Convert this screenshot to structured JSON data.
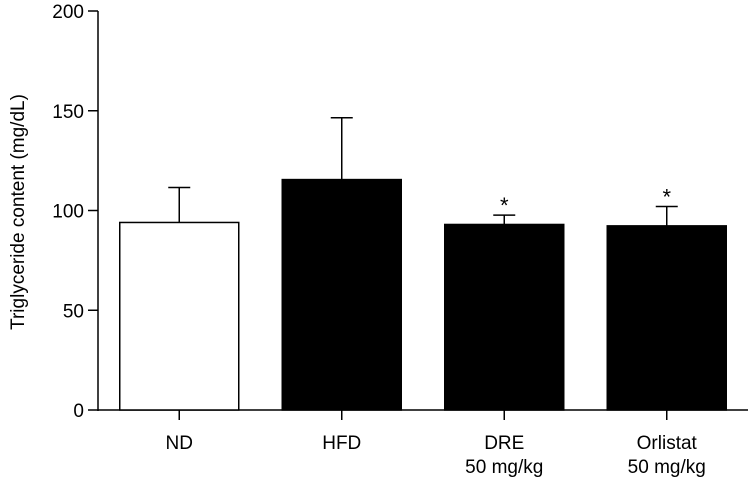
{
  "chart_data": {
    "type": "bar",
    "title": "",
    "xlabel": "",
    "ylabel": "Triglyceride content (mg/dL)",
    "ylim": [
      0,
      200
    ],
    "yticks": [
      0,
      50,
      100,
      150,
      200
    ],
    "grid": false,
    "categories": [
      {
        "lines": [
          "ND"
        ]
      },
      {
        "lines": [
          "HFD"
        ]
      },
      {
        "lines": [
          "DRE",
          "50 mg/kg"
        ]
      },
      {
        "lines": [
          "Orlistat",
          "50 mg/kg"
        ]
      }
    ],
    "values": [
      94,
      115.5,
      93,
      92.3
    ],
    "errors": [
      17.5,
      31,
      4.7,
      9.7
    ],
    "bar_colors": [
      "#ffffff",
      "#000000",
      "#000000",
      "#000000"
    ],
    "significance": [
      "",
      "",
      "*",
      "*"
    ]
  }
}
